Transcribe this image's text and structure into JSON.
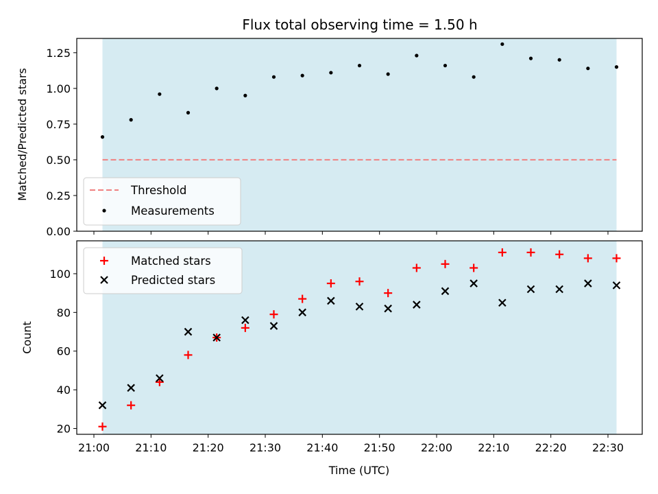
{
  "chart_data": {
    "title": "Flux total observing time = 1.50 h",
    "xlabel": "Time (UTC)",
    "x_tick_labels": [
      "21:00",
      "21:10",
      "21:20",
      "21:30",
      "21:40",
      "21:50",
      "22:00",
      "22:10",
      "22:20",
      "22:30"
    ],
    "times": [
      "21:01:30",
      "21:06:30",
      "21:11:30",
      "21:16:30",
      "21:21:30",
      "21:26:30",
      "21:31:30",
      "21:36:30",
      "21:41:30",
      "21:46:30",
      "21:51:30",
      "21:56:30",
      "22:01:30",
      "22:06:30",
      "22:11:30",
      "22:16:30",
      "22:21:30",
      "22:26:30",
      "22:31:30"
    ],
    "shaded_span": {
      "start": "21:01:30",
      "end": "22:31:30",
      "color": "#add8e6"
    },
    "top": {
      "type": "scatter",
      "ylabel": "Matched/Predicted stars",
      "ylim": [
        0,
        1.35
      ],
      "y_tick_labels": [
        "0.00",
        "0.25",
        "0.50",
        "0.75",
        "1.00",
        "1.25"
      ],
      "threshold": {
        "name": "Threshold",
        "value": 0.5,
        "color": "#f08080"
      },
      "series": [
        {
          "name": "Measurements",
          "color": "#000000",
          "values": [
            0.66,
            0.78,
            0.96,
            0.83,
            1.0,
            0.95,
            1.08,
            1.09,
            1.11,
            1.16,
            1.1,
            1.23,
            1.16,
            1.08,
            1.31,
            1.21,
            1.2,
            1.14,
            1.15
          ]
        }
      ]
    },
    "bottom": {
      "type": "scatter",
      "ylabel": "Count",
      "ylim": [
        17,
        117
      ],
      "y_tick_labels": [
        "20",
        "40",
        "60",
        "80",
        "100"
      ],
      "series": [
        {
          "name": "Matched stars",
          "marker": "plus",
          "color": "#ff0000",
          "values": [
            21,
            32,
            44,
            58,
            67,
            72,
            79,
            87,
            95,
            96,
            90,
            103,
            105,
            103,
            111,
            111,
            110,
            108,
            108
          ]
        },
        {
          "name": "Predicted stars",
          "marker": "x",
          "color": "#000000",
          "values": [
            32,
            41,
            46,
            70,
            67,
            76,
            73,
            80,
            86,
            83,
            82,
            84,
            91,
            95,
            85,
            92,
            92,
            95,
            94
          ]
        }
      ]
    }
  }
}
